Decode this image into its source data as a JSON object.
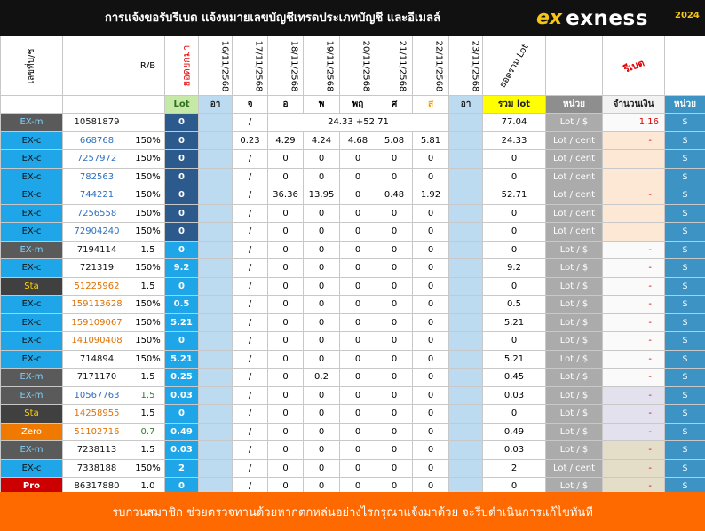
{
  "header": {
    "title": "การแจ้งขอรับรีเบต  แจ้งหมายเลขบัญชีเทรดประเภทบัญชี และอีเมลล์",
    "logo_mark": "ex",
    "logo_word": "exness",
    "year": "2024"
  },
  "columns": {
    "account_label": "เลขที่บ/ช",
    "rb_label": "R/B",
    "balance_label": "ยอดยกมา",
    "dates": [
      "16/11/2568",
      "17/11/2568",
      "18/11/2568",
      "19/11/2568",
      "20/11/2568",
      "21/11/2568",
      "22/11/2568",
      "23/11/2568"
    ],
    "total_lot_label": "ยอดรวม Lot",
    "rebate_label": "รีเบต",
    "lot_short": "Lot",
    "days": [
      "อา",
      "จ",
      "อ",
      "พ",
      "พฤ",
      "ศ",
      "ส",
      "อา"
    ],
    "sum_lot": "รวม lot",
    "unit": "หน่วย",
    "amount": "จำนวนเงิน",
    "unit2": "หน่วย"
  },
  "summary_row": {
    "type": "EX-m",
    "account": "10581879",
    "balance": "0",
    "d1": "/",
    "merged": "24.33 +52.71",
    "total": "77.04",
    "unit": "Lot / $",
    "amount": "1.16",
    "unit2": "$"
  },
  "rows": [
    {
      "type": "EX-c",
      "account": "668768",
      "rb": "150%",
      "bal": "0",
      "d": [
        "",
        "0.23",
        "4.29",
        "4.24",
        "4.68",
        "5.08",
        "5.81",
        ""
      ],
      "total": "24.33",
      "unit": "Lot / cent",
      "amount": "-",
      "unit2": "$"
    },
    {
      "type": "EX-c",
      "account": "7257972",
      "rb": "150%",
      "bal": "0",
      "d": [
        "",
        "/",
        "0",
        "0",
        "0",
        "0",
        "0",
        ""
      ],
      "total": "0",
      "unit": "Lot / cent",
      "amount": "",
      "unit2": "$"
    },
    {
      "type": "EX-c",
      "account": "782563",
      "rb": "150%",
      "bal": "0",
      "d": [
        "",
        "/",
        "0",
        "0",
        "0",
        "0",
        "0",
        ""
      ],
      "total": "0",
      "unit": "Lot / cent",
      "amount": "",
      "unit2": "$"
    },
    {
      "type": "EX-c",
      "account": "744221",
      "rb": "150%",
      "bal": "0",
      "d": [
        "",
        "/",
        "36.36",
        "13.95",
        "0",
        "0.48",
        "1.92",
        ""
      ],
      "total": "52.71",
      "unit": "Lot / cent",
      "amount": "-",
      "unit2": "$"
    },
    {
      "type": "EX-c",
      "account": "7256558",
      "rb": "150%",
      "bal": "0",
      "d": [
        "",
        "/",
        "0",
        "0",
        "0",
        "0",
        "0",
        ""
      ],
      "total": "0",
      "unit": "Lot / cent",
      "amount": "",
      "unit2": "$"
    },
    {
      "type": "EX-c",
      "account": "72904240",
      "rb": "150%",
      "bal": "0",
      "d": [
        "",
        "/",
        "0",
        "0",
        "0",
        "0",
        "0",
        ""
      ],
      "total": "0",
      "unit": "Lot / cent",
      "amount": "",
      "unit2": "$"
    },
    {
      "type": "EX-m",
      "account": "7194114",
      "rb": "1.5",
      "bal": "0",
      "d": [
        "",
        "/",
        "0",
        "0",
        "0",
        "0",
        "0",
        ""
      ],
      "total": "0",
      "unit": "Lot / $",
      "amount": "-",
      "unit2": "$"
    },
    {
      "type": "EX-c",
      "account": "721319",
      "rb": "150%",
      "bal": "9.2",
      "d": [
        "",
        "/",
        "0",
        "0",
        "0",
        "0",
        "0",
        ""
      ],
      "total": "9.2",
      "unit": "Lot / $",
      "amount": "-",
      "unit2": "$"
    },
    {
      "type": "Sta",
      "account": "51225962",
      "rb": "1.5",
      "bal": "0",
      "d": [
        "",
        "/",
        "0",
        "0",
        "0",
        "0",
        "0",
        ""
      ],
      "total": "0",
      "unit": "Lot / $",
      "amount": "-",
      "unit2": "$"
    },
    {
      "type": "EX-c",
      "account": "159113628",
      "rb": "150%",
      "bal": "0.5",
      "d": [
        "",
        "/",
        "0",
        "0",
        "0",
        "0",
        "0",
        ""
      ],
      "total": "0.5",
      "unit": "Lot / $",
      "amount": "-",
      "unit2": "$"
    },
    {
      "type": "EX-c",
      "account": "159109067",
      "rb": "150%",
      "bal": "5.21",
      "d": [
        "",
        "/",
        "0",
        "0",
        "0",
        "0",
        "0",
        ""
      ],
      "total": "5.21",
      "unit": "Lot / $",
      "amount": "-",
      "unit2": "$"
    },
    {
      "type": "EX-c",
      "account": "141090408",
      "rb": "150%",
      "bal": "0",
      "d": [
        "",
        "/",
        "0",
        "0",
        "0",
        "0",
        "0",
        ""
      ],
      "total": "0",
      "unit": "Lot / $",
      "amount": "-",
      "unit2": "$"
    },
    {
      "type": "EX-c",
      "account": "714894",
      "rb": "150%",
      "bal": "5.21",
      "d": [
        "",
        "/",
        "0",
        "0",
        "0",
        "0",
        "0",
        ""
      ],
      "total": "5.21",
      "unit": "Lot / $",
      "amount": "-",
      "unit2": "$"
    },
    {
      "type": "EX-m",
      "account": "7171170",
      "rb": "1.5",
      "bal": "0.25",
      "d": [
        "",
        "/",
        "0",
        "0.2",
        "0",
        "0",
        "0",
        ""
      ],
      "total": "0.45",
      "unit": "Lot / $",
      "amount": "-",
      "unit2": "$"
    },
    {
      "type": "EX-m",
      "account": "10567763",
      "rb": "1.5",
      "bal": "0.03",
      "d": [
        "",
        "/",
        "0",
        "0",
        "0",
        "0",
        "0",
        ""
      ],
      "total": "0.03",
      "unit": "Lot / $",
      "amount": "-",
      "unit2": "$"
    },
    {
      "type": "Sta",
      "account": "14258955",
      "rb": "1.5",
      "bal": "0",
      "d": [
        "",
        "/",
        "0",
        "0",
        "0",
        "0",
        "0",
        ""
      ],
      "total": "0",
      "unit": "Lot / $",
      "amount": "-",
      "unit2": "$"
    },
    {
      "type": "Zero",
      "account": "51102716",
      "rb": "0.7",
      "bal": "0.49",
      "d": [
        "",
        "/",
        "0",
        "0",
        "0",
        "0",
        "0",
        ""
      ],
      "total": "0.49",
      "unit": "Lot / $",
      "amount": "-",
      "unit2": "$"
    },
    {
      "type": "EX-m",
      "account": "7238113",
      "rb": "1.5",
      "bal": "0.03",
      "d": [
        "",
        "/",
        "0",
        "0",
        "0",
        "0",
        "0",
        ""
      ],
      "total": "0.03",
      "unit": "Lot / $",
      "amount": "-",
      "unit2": "$"
    },
    {
      "type": "EX-c",
      "account": "7338188",
      "rb": "150%",
      "bal": "2",
      "d": [
        "",
        "/",
        "0",
        "0",
        "0",
        "0",
        "0",
        ""
      ],
      "total": "2",
      "unit": "Lot / cent",
      "amount": "-",
      "unit2": "$"
    },
    {
      "type": "Pro",
      "account": "86317880",
      "rb": "1.0",
      "bal": "0",
      "d": [
        "",
        "/",
        "0",
        "0",
        "0",
        "0",
        "0",
        ""
      ],
      "total": "0",
      "unit": "Lot / $",
      "amount": "-",
      "unit2": "$"
    }
  ],
  "footer": {
    "text": "รบกวนสมาชิก ช่วยตรวจทานด้วยหากตกหล่นอย่างไรกรุณาแจ้งมาด้วย จะรีบดำเนินการแก้ไขทันที"
  }
}
